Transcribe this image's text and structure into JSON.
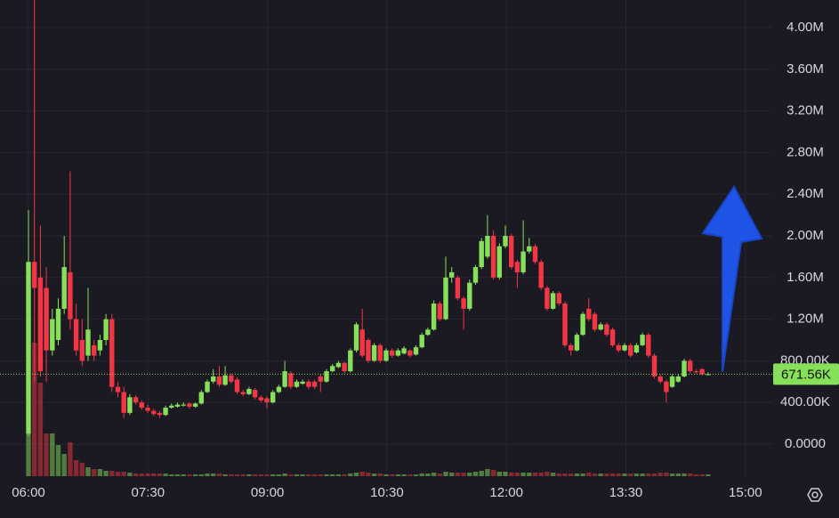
{
  "chart_data": {
    "type": "candlestick",
    "colors": {
      "up": "#86e05a",
      "down": "#f23645"
    },
    "open": [
      100000,
      1750000,
      1600000,
      1500000,
      900000,
      1000000,
      1300000,
      1650000,
      1200000,
      1000000,
      850000,
      950000,
      900000,
      1000000,
      1200000,
      550000,
      500000,
      300000,
      450000,
      400000,
      350000,
      320000,
      300000,
      280000,
      350000,
      360000,
      370000,
      390000,
      360000,
      390000,
      500000,
      600000,
      650000,
      570000,
      660000,
      620000,
      500000,
      480000,
      520000,
      450000,
      440000,
      400000,
      500000,
      550000,
      680000,
      550000,
      580000,
      600000,
      600000,
      650000,
      600000,
      700000,
      740000,
      780000,
      700000,
      900000,
      1100000,
      1000000,
      800000,
      950000,
      800000,
      900000,
      850000,
      870000,
      900000,
      860000,
      930000,
      1050000,
      1100000,
      1350000,
      1200000,
      1600000,
      1600000,
      1400000,
      1300000,
      1550000,
      1700000,
      1800000,
      2000000,
      1600000,
      1900000,
      2000000,
      1750000,
      1650000,
      1850000,
      1900000,
      1750000,
      1500000,
      1300000,
      1450000,
      1350000,
      950000,
      900000,
      1050000,
      1300000,
      1250000,
      1100000,
      1150000,
      1100000,
      950000,
      900000,
      950000,
      880000,
      950000,
      1050000,
      850000,
      650000,
      600000,
      550000,
      600000,
      650000,
      800000,
      700000,
      720000,
      670000
    ],
    "high": [
      2250000,
      4300000,
      2100000,
      1700000,
      1300000,
      1400000,
      2000000,
      2620000,
      1350000,
      1200000,
      1500000,
      1000000,
      1050000,
      1250000,
      1250000,
      600000,
      550000,
      480000,
      470000,
      420000,
      380000,
      340000,
      320000,
      370000,
      390000,
      400000,
      400000,
      400000,
      400000,
      520000,
      620000,
      720000,
      750000,
      750000,
      680000,
      640000,
      520000,
      550000,
      540000,
      470000,
      460000,
      520000,
      570000,
      800000,
      700000,
      620000,
      620000,
      620000,
      620000,
      670000,
      720000,
      770000,
      800000,
      790000,
      920000,
      1170000,
      1300000,
      1020000,
      970000,
      970000,
      920000,
      920000,
      920000,
      940000,
      910000,
      950000,
      1070000,
      1120000,
      1380000,
      1370000,
      1800000,
      1700000,
      1620000,
      1420000,
      1580000,
      1720000,
      1980000,
      2200000,
      2050000,
      1930000,
      2100000,
      2020000,
      1770000,
      2150000,
      1980000,
      1920000,
      1770000,
      1520000,
      1470000,
      1470000,
      1370000,
      970000,
      1070000,
      1270000,
      1400000,
      1270000,
      1170000,
      1170000,
      1120000,
      970000,
      970000,
      970000,
      970000,
      1070000,
      1070000,
      870000,
      670000,
      620000,
      670000,
      670000,
      820000,
      820000,
      720000,
      730000,
      690000
    ],
    "low": [
      80000,
      600000,
      650000,
      600000,
      850000,
      950000,
      1250000,
      1100000,
      850000,
      750000,
      800000,
      800000,
      850000,
      950000,
      500000,
      450000,
      250000,
      280000,
      380000,
      330000,
      300000,
      270000,
      250000,
      270000,
      340000,
      350000,
      360000,
      340000,
      350000,
      380000,
      490000,
      580000,
      550000,
      560000,
      580000,
      480000,
      460000,
      470000,
      430000,
      400000,
      340000,
      390000,
      490000,
      540000,
      530000,
      540000,
      570000,
      530000,
      530000,
      500000,
      590000,
      690000,
      730000,
      680000,
      690000,
      880000,
      830000,
      780000,
      790000,
      780000,
      790000,
      830000,
      840000,
      860000,
      830000,
      850000,
      920000,
      1040000,
      1090000,
      1180000,
      1190000,
      1550000,
      1380000,
      1100000,
      1280000,
      1530000,
      1680000,
      1780000,
      1580000,
      1580000,
      1880000,
      1680000,
      1500000,
      1630000,
      1830000,
      1730000,
      1480000,
      1280000,
      1290000,
      1330000,
      930000,
      850000,
      890000,
      1040000,
      1180000,
      1080000,
      1090000,
      1030000,
      930000,
      880000,
      890000,
      830000,
      870000,
      940000,
      830000,
      630000,
      580000,
      400000,
      540000,
      590000,
      640000,
      680000,
      680000,
      660000,
      660000
    ],
    "close": [
      1750000,
      1500000,
      700000,
      900000,
      1200000,
      1300000,
      1700000,
      1200000,
      900000,
      800000,
      1100000,
      850000,
      1000000,
      1200000,
      550000,
      500000,
      300000,
      450000,
      400000,
      350000,
      320000,
      290000,
      280000,
      350000,
      370000,
      380000,
      380000,
      360000,
      390000,
      500000,
      600000,
      650000,
      570000,
      660000,
      600000,
      500000,
      480000,
      530000,
      450000,
      420000,
      400000,
      500000,
      550000,
      700000,
      550000,
      600000,
      600000,
      550000,
      550000,
      600000,
      700000,
      750000,
      780000,
      700000,
      900000,
      1150000,
      850000,
      800000,
      950000,
      800000,
      900000,
      850000,
      900000,
      920000,
      850000,
      930000,
      1050000,
      1100000,
      1350000,
      1200000,
      1600000,
      1650000,
      1400000,
      1300000,
      1550000,
      1700000,
      1950000,
      2000000,
      1600000,
      1900000,
      2000000,
      1700000,
      1650000,
      1850000,
      1900000,
      1750000,
      1500000,
      1300000,
      1450000,
      1350000,
      950000,
      900000,
      1050000,
      1250000,
      1200000,
      1100000,
      1150000,
      1050000,
      950000,
      900000,
      950000,
      850000,
      950000,
      1050000,
      850000,
      650000,
      600000,
      500000,
      650000,
      650000,
      800000,
      700000,
      690000,
      670000,
      671560
    ],
    "volume": [
      48,
      150,
      105,
      48,
      48,
      35,
      25,
      38,
      18,
      15,
      10,
      8,
      8,
      6,
      6,
      5,
      5,
      4,
      3,
      3,
      3,
      3,
      3,
      3,
      2,
      2,
      2,
      2,
      2,
      2,
      3,
      3,
      3,
      2,
      2,
      2,
      2,
      2,
      2,
      2,
      2,
      2,
      2,
      3,
      2,
      2,
      2,
      2,
      2,
      2,
      2,
      2,
      2,
      2,
      3,
      4,
      5,
      4,
      3,
      3,
      2,
      2,
      2,
      2,
      2,
      2,
      3,
      3,
      4,
      3,
      5,
      4,
      4,
      4,
      4,
      5,
      6,
      8,
      7,
      5,
      5,
      4,
      4,
      4,
      4,
      4,
      4,
      5,
      4,
      3,
      3,
      3,
      3,
      3,
      4,
      3,
      3,
      3,
      3,
      3,
      3,
      3,
      3,
      3,
      3,
      3,
      4,
      4,
      3,
      3,
      3,
      3,
      2,
      2,
      2
    ],
    "x_labels": [
      "06:00",
      "07:30",
      "09:00",
      "10:30",
      "12:00",
      "13:30",
      "15:00"
    ],
    "ylim": [
      -307700,
      4265000
    ],
    "yticks": [
      {
        "value": 0,
        "label": "0.0000"
      },
      {
        "value": 400000,
        "label": "400.00K"
      },
      {
        "value": 800000,
        "label": "800.00K"
      },
      {
        "value": 1200000,
        "label": "1.20M"
      },
      {
        "value": 1600000,
        "label": "1.60M"
      },
      {
        "value": 2000000,
        "label": "2.00M"
      },
      {
        "value": 2400000,
        "label": "2.40M"
      },
      {
        "value": 2800000,
        "label": "2.80M"
      },
      {
        "value": 3200000,
        "label": "3.20M"
      },
      {
        "value": 3600000,
        "label": "3.60M"
      },
      {
        "value": 4000000,
        "label": "4.00M"
      }
    ],
    "last_price": {
      "value": 671560,
      "label": "671.56K",
      "color": "#86e05a"
    },
    "grid": true
  }
}
